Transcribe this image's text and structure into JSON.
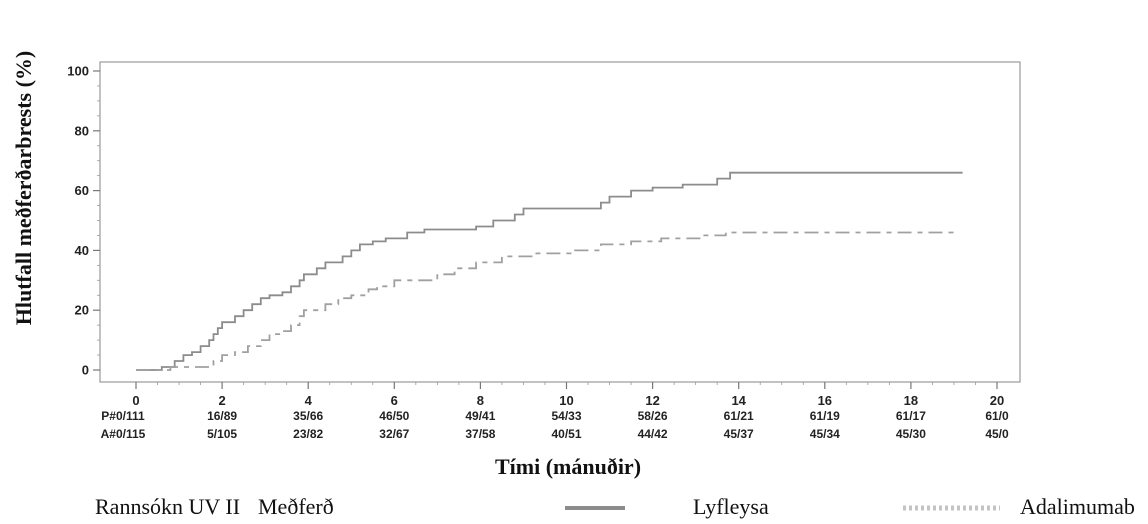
{
  "chart_data": {
    "type": "line",
    "title": "",
    "xlabel": "Tími (mánuðir)",
    "ylabel": "Hlutfall meðferðarbrests (%)",
    "xlim": [
      0,
      20
    ],
    "ylim": [
      0,
      100
    ],
    "x_ticks": [
      "0",
      "2",
      "4",
      "6",
      "8",
      "10",
      "12",
      "14",
      "16",
      "18",
      "20"
    ],
    "y_ticks": [
      "0",
      "20",
      "40",
      "60",
      "80",
      "100"
    ],
    "grid": false,
    "series": [
      {
        "name": "Lyfleysa",
        "color": "#8c8c8c",
        "style": "solid",
        "points": [
          [
            0,
            0
          ],
          [
            0.6,
            0
          ],
          [
            0.6,
            1
          ],
          [
            0.9,
            1
          ],
          [
            0.9,
            3
          ],
          [
            1.1,
            3
          ],
          [
            1.1,
            5
          ],
          [
            1.3,
            5
          ],
          [
            1.3,
            6
          ],
          [
            1.5,
            6
          ],
          [
            1.5,
            8
          ],
          [
            1.7,
            8
          ],
          [
            1.7,
            10
          ],
          [
            1.8,
            10
          ],
          [
            1.8,
            12
          ],
          [
            1.9,
            12
          ],
          [
            1.9,
            14
          ],
          [
            2.0,
            14
          ],
          [
            2.0,
            16
          ],
          [
            2.3,
            16
          ],
          [
            2.3,
            18
          ],
          [
            2.5,
            18
          ],
          [
            2.5,
            20
          ],
          [
            2.7,
            20
          ],
          [
            2.7,
            22
          ],
          [
            2.9,
            22
          ],
          [
            2.9,
            24
          ],
          [
            3.1,
            24
          ],
          [
            3.1,
            25
          ],
          [
            3.4,
            25
          ],
          [
            3.4,
            26
          ],
          [
            3.6,
            26
          ],
          [
            3.6,
            28
          ],
          [
            3.8,
            28
          ],
          [
            3.8,
            30
          ],
          [
            3.9,
            30
          ],
          [
            3.9,
            32
          ],
          [
            4.2,
            32
          ],
          [
            4.2,
            34
          ],
          [
            4.4,
            34
          ],
          [
            4.4,
            36
          ],
          [
            4.8,
            36
          ],
          [
            4.8,
            38
          ],
          [
            5.0,
            38
          ],
          [
            5.0,
            40
          ],
          [
            5.2,
            40
          ],
          [
            5.2,
            42
          ],
          [
            5.5,
            42
          ],
          [
            5.5,
            43
          ],
          [
            5.8,
            43
          ],
          [
            5.8,
            44
          ],
          [
            6.3,
            44
          ],
          [
            6.3,
            46
          ],
          [
            6.7,
            46
          ],
          [
            6.7,
            47
          ],
          [
            7.9,
            47
          ],
          [
            7.9,
            48
          ],
          [
            8.3,
            48
          ],
          [
            8.3,
            50
          ],
          [
            8.8,
            50
          ],
          [
            8.8,
            52
          ],
          [
            9.0,
            52
          ],
          [
            9.0,
            54
          ],
          [
            10.8,
            54
          ],
          [
            10.8,
            56
          ],
          [
            11.0,
            56
          ],
          [
            11.0,
            58
          ],
          [
            11.5,
            58
          ],
          [
            11.5,
            60
          ],
          [
            12.0,
            60
          ],
          [
            12.0,
            61
          ],
          [
            12.7,
            61
          ],
          [
            12.7,
            62
          ],
          [
            13.5,
            62
          ],
          [
            13.5,
            64
          ],
          [
            13.8,
            64
          ],
          [
            13.8,
            66
          ],
          [
            19.2,
            66
          ]
        ]
      },
      {
        "name": "Adalimumab",
        "color": "#a0a0a0",
        "style": "dashed",
        "points": [
          [
            0,
            0
          ],
          [
            0.8,
            0
          ],
          [
            0.8,
            1
          ],
          [
            1.8,
            1
          ],
          [
            1.8,
            3
          ],
          [
            2.0,
            3
          ],
          [
            2.0,
            5
          ],
          [
            2.3,
            5
          ],
          [
            2.3,
            6
          ],
          [
            2.6,
            6
          ],
          [
            2.6,
            8
          ],
          [
            2.9,
            8
          ],
          [
            2.9,
            10
          ],
          [
            3.1,
            10
          ],
          [
            3.1,
            12
          ],
          [
            3.4,
            12
          ],
          [
            3.4,
            13
          ],
          [
            3.6,
            13
          ],
          [
            3.6,
            15
          ],
          [
            3.8,
            15
          ],
          [
            3.8,
            18
          ],
          [
            3.9,
            18
          ],
          [
            3.9,
            20
          ],
          [
            4.4,
            20
          ],
          [
            4.4,
            22
          ],
          [
            4.7,
            22
          ],
          [
            4.7,
            24
          ],
          [
            5.0,
            24
          ],
          [
            5.0,
            25
          ],
          [
            5.4,
            25
          ],
          [
            5.4,
            27
          ],
          [
            5.6,
            27
          ],
          [
            5.6,
            28
          ],
          [
            6.0,
            28
          ],
          [
            6.0,
            30
          ],
          [
            7.0,
            30
          ],
          [
            7.0,
            32
          ],
          [
            7.4,
            32
          ],
          [
            7.4,
            34
          ],
          [
            7.9,
            34
          ],
          [
            7.9,
            36
          ],
          [
            8.5,
            36
          ],
          [
            8.5,
            38
          ],
          [
            9.3,
            38
          ],
          [
            9.3,
            39
          ],
          [
            10.2,
            39
          ],
          [
            10.2,
            40
          ],
          [
            10.8,
            40
          ],
          [
            10.8,
            42
          ],
          [
            11.5,
            42
          ],
          [
            11.5,
            43
          ],
          [
            12.2,
            43
          ],
          [
            12.2,
            44
          ],
          [
            13.2,
            44
          ],
          [
            13.2,
            45
          ],
          [
            13.7,
            45
          ],
          [
            13.7,
            46
          ],
          [
            19.0,
            46
          ]
        ]
      }
    ],
    "risk_table": {
      "placebo_prefix": "P#",
      "adalimumab_prefix": "A#",
      "placebo": [
        "0/111",
        "16/89",
        "35/66",
        "46/50",
        "49/41",
        "54/33",
        "58/26",
        "61/21",
        "61/19",
        "61/17",
        "61/0"
      ],
      "adalimumab": [
        "0/115",
        "5/105",
        "23/82",
        "32/67",
        "37/58",
        "40/51",
        "44/42",
        "45/37",
        "45/34",
        "45/30",
        "45/0"
      ]
    }
  },
  "legend": {
    "study_label": "Rannsókn UV II",
    "treatment_label": "Meðferð",
    "placebo_label": "Lyfleysa",
    "adalimumab_label": "Adalimumab"
  }
}
